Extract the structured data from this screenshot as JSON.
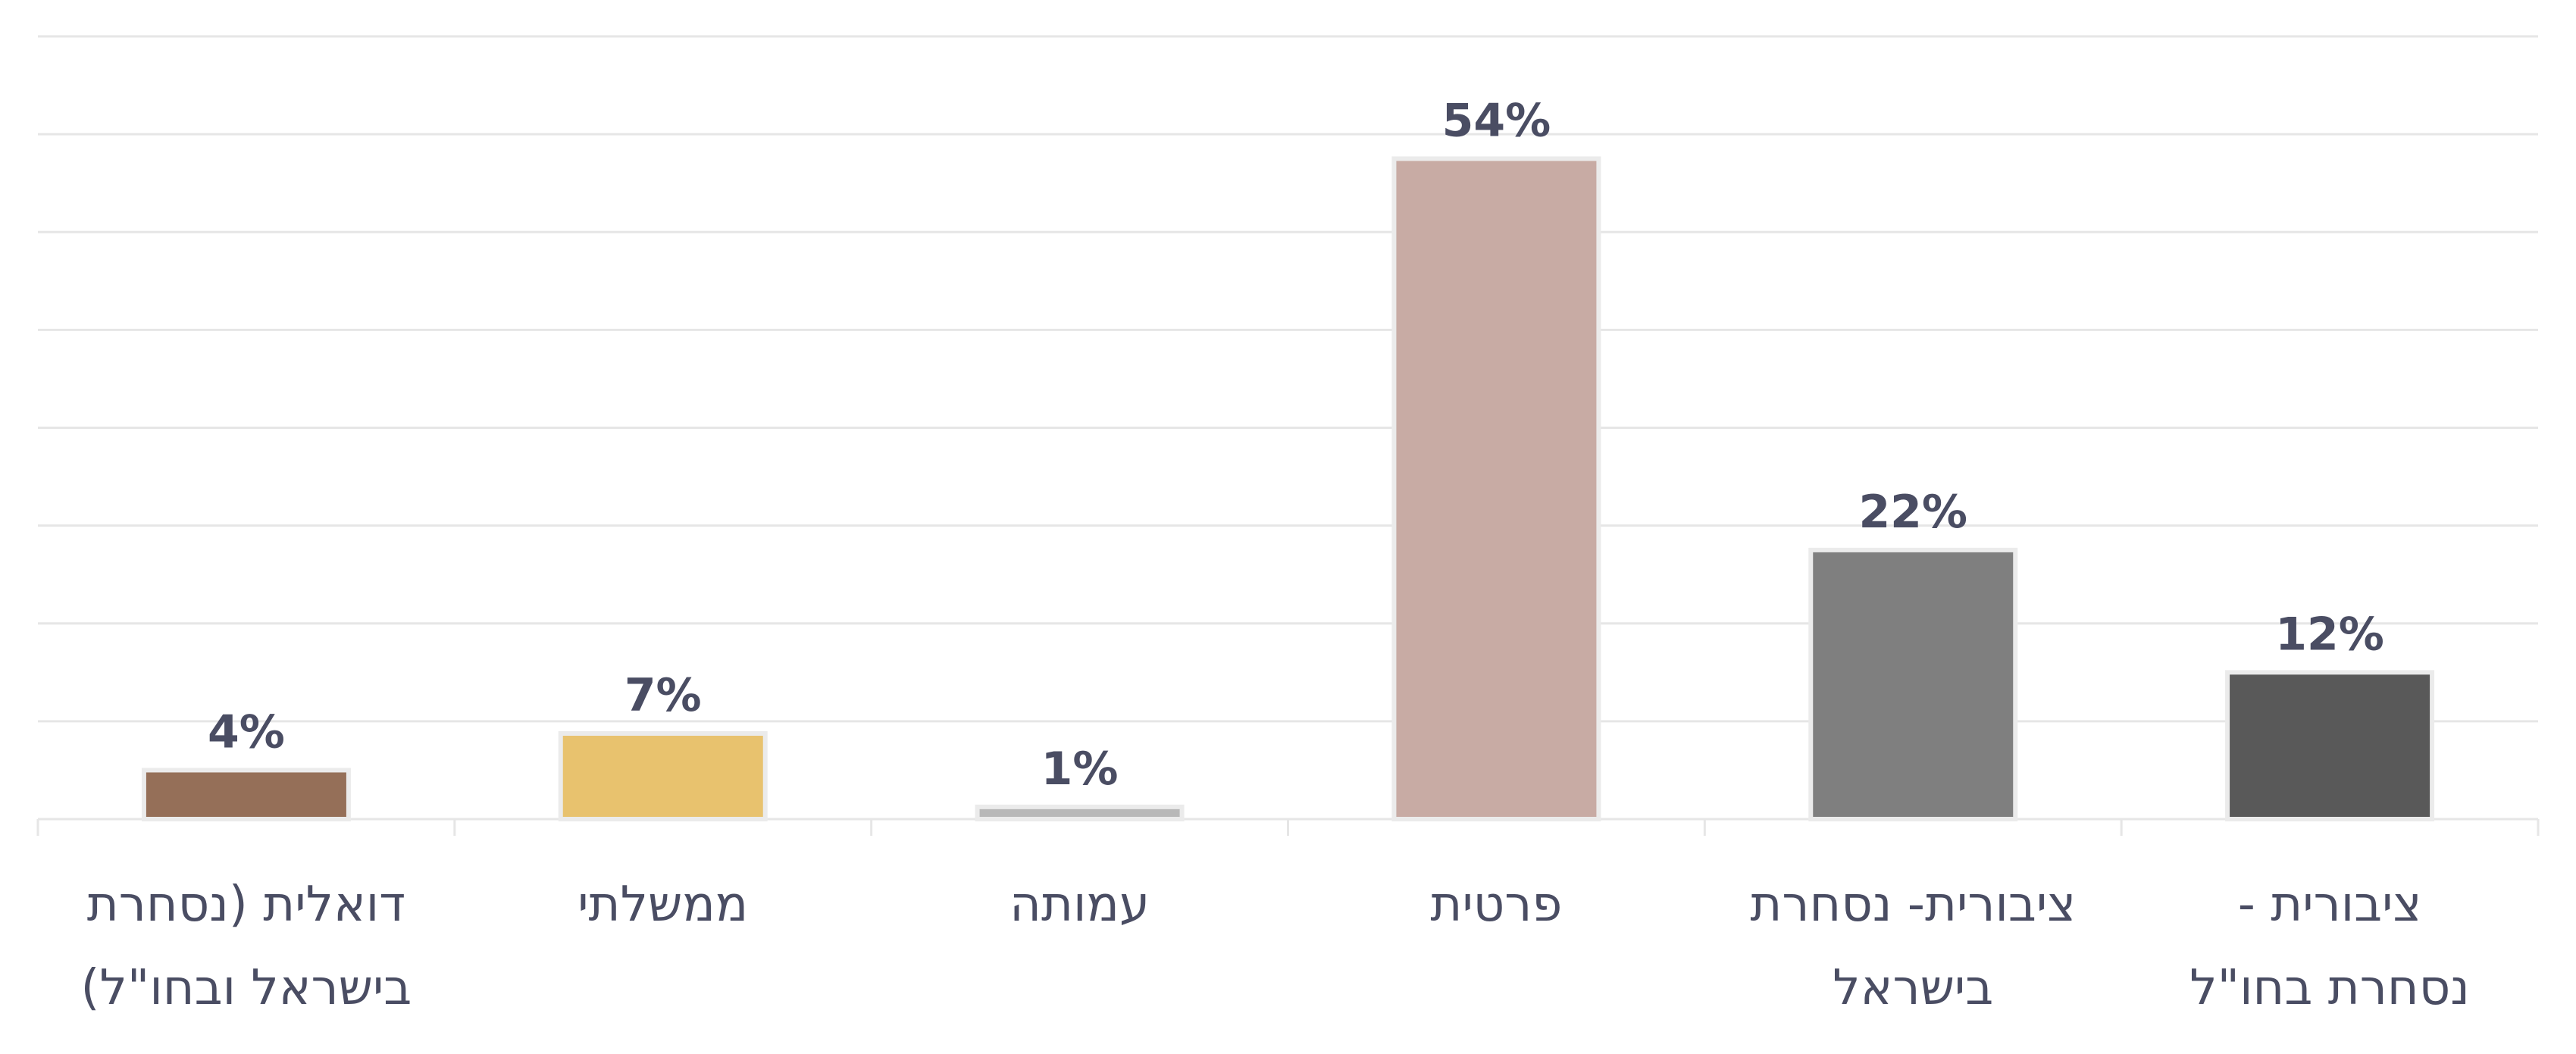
{
  "chart_data": {
    "type": "bar",
    "categories": [
      [
        "דואלית (נסחרת",
        "בישראל ובחו\"ל)"
      ],
      [
        "ממשלתי"
      ],
      [
        "עמותה"
      ],
      [
        "פרטית"
      ],
      [
        "ציבורית- נסחרת",
        "בישראל"
      ],
      [
        "ציבורית -",
        "נסחרת בחו\"ל"
      ]
    ],
    "values": [
      4,
      7,
      1,
      54,
      22,
      12
    ],
    "data_labels": [
      "4%",
      "7%",
      "1%",
      "54%",
      "22%",
      "12%"
    ],
    "colors": [
      "#956f58",
      "#e8c26e",
      "#b8b8b8",
      "#c8aba4",
      "#7f7f7f",
      "#595959"
    ],
    "ylim": [
      0,
      64
    ],
    "grid": true,
    "legend": "none"
  }
}
